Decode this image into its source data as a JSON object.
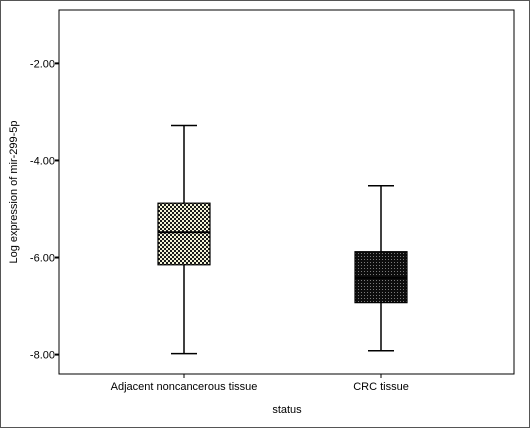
{
  "chart_data": {
    "type": "box",
    "xlabel": "status",
    "ylabel": "Log expression of mir-299-5p",
    "ylim": [
      -8.4,
      -0.9
    ],
    "yticks": [
      -2,
      -4,
      -6,
      -8
    ],
    "ytick_labels": [
      "-2.00",
      "-4.00",
      "-6.00",
      "-8.00"
    ],
    "grid": false,
    "categories": [
      "Adjacent noncancerous tissue",
      "CRC tissue"
    ],
    "boxes": [
      {
        "category": "Adjacent noncancerous tissue",
        "min": -7.98,
        "q1": -6.15,
        "median": -5.48,
        "q3": -4.88,
        "max": -3.28,
        "pattern": "checker-light"
      },
      {
        "category": "CRC tissue",
        "min": -7.92,
        "q1": -6.93,
        "median": -6.42,
        "q3": -5.88,
        "max": -4.52,
        "pattern": "dots-dark"
      }
    ],
    "colors": {
      "box_light": "#f3f3d6",
      "box_dark": "#111111",
      "line": "#000000",
      "frame": "#000000"
    }
  }
}
